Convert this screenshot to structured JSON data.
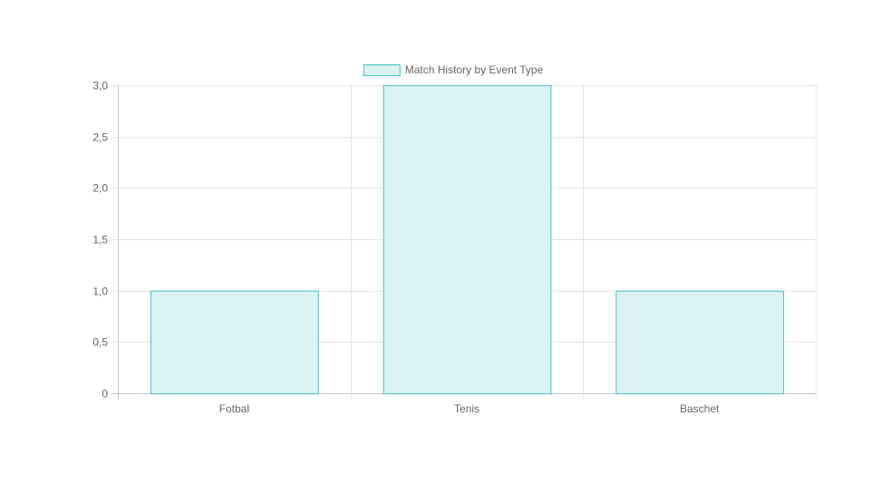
{
  "chart_data": {
    "type": "bar",
    "legend": {
      "label": "Match History by Event Type",
      "position": "top"
    },
    "categories": [
      "Fotbal",
      "Tenis",
      "Baschet"
    ],
    "series": [
      {
        "name": "Match History by Event Type",
        "values": [
          1,
          3,
          1
        ]
      }
    ],
    "ylim": [
      0,
      3
    ],
    "yticks": [
      {
        "value": 0,
        "label": "0"
      },
      {
        "value": 0.5,
        "label": "0,5"
      },
      {
        "value": 1,
        "label": "1,0"
      },
      {
        "value": 1.5,
        "label": "1,5"
      },
      {
        "value": 2,
        "label": "2,0"
      },
      {
        "value": 2.5,
        "label": "2,5"
      },
      {
        "value": 3,
        "label": "3,0"
      }
    ],
    "grid": true,
    "colors": {
      "bar_fill": "#dbf2f2",
      "bar_stroke": "#4bc0c0",
      "grid": "#e5e5e5",
      "axis": "#c8c8c8",
      "tick_text": "#666666"
    }
  }
}
